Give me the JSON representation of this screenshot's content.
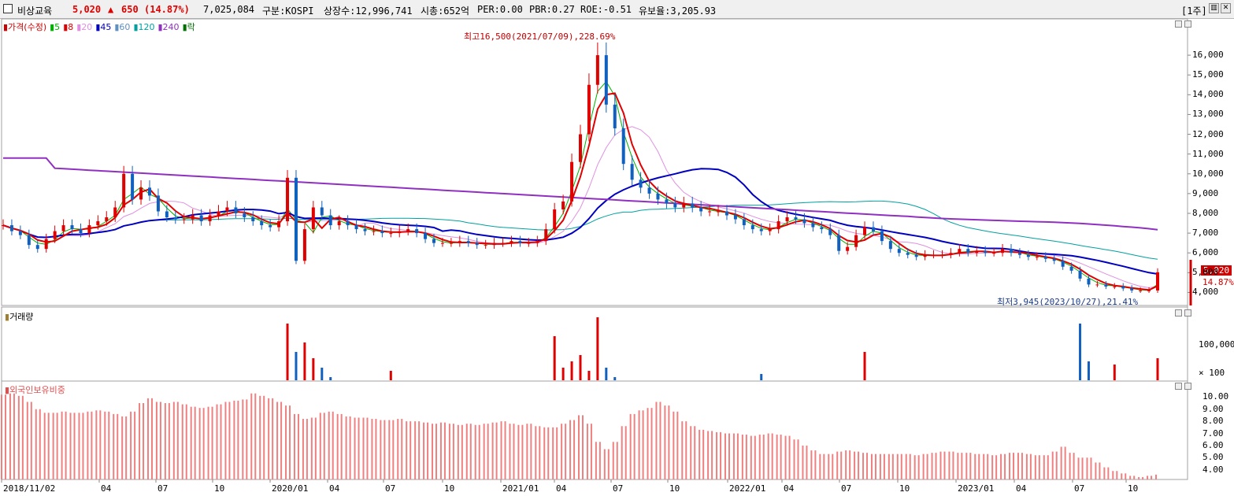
{
  "header": {
    "stock_name": "비상교육",
    "price": "5,020",
    "change_arrow": "▲",
    "change": "650",
    "change_pct": "(14.87%)",
    "volume": "7,025,084",
    "market": "구분:KOSPI",
    "shares": "상장수:12,996,741",
    "market_cap": "시총:652억",
    "per": "PER:0.00",
    "pbr": "PBR:0.27",
    "roe": "ROE:-0.51",
    "reserve": "유보율:3,205.93",
    "period": "[1주]"
  },
  "price_legend": [
    {
      "text": "가격(수정)",
      "color": "#d00000"
    },
    {
      "text": "5",
      "color": "#00b000"
    },
    {
      "text": "8",
      "color": "#e00000"
    },
    {
      "text": "20",
      "color": "#e090e0"
    },
    {
      "text": "45",
      "color": "#0000c0"
    },
    {
      "text": "60",
      "color": "#6090c0"
    },
    {
      "text": "120",
      "color": "#00a0a0"
    },
    {
      "text": "240",
      "color": "#9030c0"
    },
    {
      "text": "락",
      "color": "#007000"
    }
  ],
  "annotations": {
    "high": "최고16,500(2021/07/09),228.69%",
    "low": "최저3,945(2023/10/27),21.41%",
    "current_price": "5,020",
    "current_pct": "14.87%"
  },
  "volume_label": "거래량",
  "foreign_label": "외국인보유비중",
  "price_axis": [
    "16,000",
    "15,000",
    "14,000",
    "13,000",
    "12,000",
    "11,000",
    "10,000",
    "9,000",
    "8,000",
    "7,000",
    "6,000",
    "5,000",
    "4,000"
  ],
  "volume_axis": [
    "100,000",
    "× 100"
  ],
  "foreign_axis": [
    "10.00",
    "9.00",
    "8.00",
    "7.00",
    "6.00",
    "5.00",
    "4.00"
  ],
  "time_axis": [
    "2018/11/02",
    "04",
    "07",
    "10",
    "2020/01",
    "04",
    "07",
    "10",
    "2021/01",
    "04",
    "07",
    "10",
    "2022/01",
    "04",
    "07",
    "10",
    "2023/01",
    "04",
    "07",
    "10"
  ],
  "chart_data": {
    "type": "candlestick",
    "price_series": [
      7400,
      7100,
      6900,
      6400,
      6200,
      6700,
      7100,
      7400,
      7200,
      7000,
      7400,
      7600,
      7800,
      8300,
      10000,
      8700,
      9300,
      8900,
      8100,
      7800,
      7700,
      7700,
      7900,
      7600,
      7900,
      8100,
      8300,
      8000,
      7800,
      7600,
      7400,
      7300,
      7600,
      9800,
      5600,
      7200,
      8300,
      7900,
      7400,
      7600,
      7400,
      7200,
      7100,
      7100,
      7000,
      7000,
      7100,
      7200,
      7000,
      6700,
      6500,
      6500,
      6500,
      6600,
      6500,
      6400,
      6400,
      6500,
      6500,
      6600,
      6500,
      6500,
      6600,
      7200,
      8200,
      8600,
      10600,
      12000,
      14500,
      16000,
      13500,
      12300,
      10500,
      9700,
      9300,
      9000,
      8700,
      8500,
      8300,
      8500,
      8300,
      8100,
      8100,
      8100,
      7900,
      7700,
      7400,
      7200,
      7100,
      7200,
      7600,
      7800,
      7700,
      7500,
      7300,
      7200,
      6900,
      6100,
      6300,
      6900,
      7300,
      7100,
      6600,
      6200,
      6000,
      5900,
      5800,
      5900,
      5900,
      5900,
      6000,
      6200,
      6000,
      6100,
      6000,
      6000,
      6200,
      6000,
      5900,
      5800,
      5800,
      5700,
      5600,
      5300,
      5100,
      4700,
      4400,
      4400,
      4300,
      4300,
      4200,
      4100,
      4100,
      4100,
      5020
    ],
    "volume_series": [
      0,
      0,
      0,
      0,
      0,
      0,
      0,
      0,
      0,
      0,
      0,
      0,
      0,
      0,
      0,
      0,
      0,
      0,
      0,
      0,
      0,
      0,
      0,
      0,
      0,
      0,
      0,
      0,
      0,
      0,
      0,
      0,
      0,
      90,
      45,
      60,
      35,
      20,
      5,
      0,
      0,
      0,
      0,
      0,
      0,
      15,
      0,
      0,
      0,
      0,
      0,
      0,
      0,
      0,
      0,
      0,
      0,
      0,
      0,
      0,
      0,
      0,
      0,
      0,
      70,
      20,
      30,
      40,
      15,
      100,
      20,
      5,
      0,
      0,
      0,
      0,
      0,
      0,
      0,
      0,
      0,
      0,
      0,
      0,
      0,
      0,
      0,
      0,
      10,
      0,
      0,
      0,
      0,
      0,
      0,
      0,
      0,
      0,
      0,
      0,
      45,
      0,
      0,
      0,
      0,
      0,
      0,
      0,
      0,
      0,
      0,
      0,
      0,
      0,
      0,
      0,
      0,
      0,
      0,
      0,
      0,
      0,
      0,
      0,
      0,
      90,
      30,
      0,
      0,
      25,
      0,
      0,
      0,
      0,
      35
    ],
    "foreign_series": [
      10.2,
      10.3,
      10.1,
      9.6,
      9.0,
      8.7,
      8.7,
      8.8,
      8.7,
      8.7,
      8.8,
      8.9,
      8.8,
      8.6,
      8.4,
      8.8,
      9.5,
      9.9,
      9.6,
      9.5,
      9.6,
      9.4,
      9.2,
      9.1,
      9.2,
      9.4,
      9.6,
      9.7,
      9.8,
      10.3,
      10.1,
      9.9,
      9.6,
      9.3,
      8.6,
      8.2,
      8.3,
      8.7,
      8.8,
      8.6,
      8.4,
      8.3,
      8.3,
      8.2,
      8.1,
      8.1,
      8.2,
      8.0,
      8.0,
      7.9,
      7.8,
      7.9,
      7.8,
      7.7,
      7.8,
      7.7,
      7.8,
      7.9,
      8.0,
      7.8,
      7.7,
      7.8,
      7.6,
      7.5,
      7.5,
      7.8,
      8.1,
      8.5,
      7.8,
      6.3,
      5.7,
      6.3,
      7.6,
      8.6,
      8.9,
      9.1,
      9.6,
      9.3,
      8.8,
      8.0,
      7.6,
      7.3,
      7.2,
      7.1,
      7.0,
      7.0,
      6.9,
      6.8,
      6.9,
      7.0,
      6.9,
      6.8,
      6.5,
      6.0,
      5.6,
      5.3,
      5.3,
      5.5,
      5.6,
      5.5,
      5.4,
      5.3,
      5.3,
      5.3,
      5.3,
      5.3,
      5.2,
      5.3,
      5.4,
      5.5,
      5.5,
      5.4,
      5.4,
      5.3,
      5.3,
      5.2,
      5.3,
      5.4,
      5.4,
      5.3,
      5.2,
      5.2,
      5.5,
      5.9,
      5.4,
      5.0,
      5.0,
      4.6,
      4.2,
      3.9,
      3.7,
      3.5,
      3.4,
      3.5,
      3.6
    ],
    "ylim_price": [
      3500,
      16800
    ],
    "ylim_foreign": [
      3.2,
      10.8
    ]
  }
}
